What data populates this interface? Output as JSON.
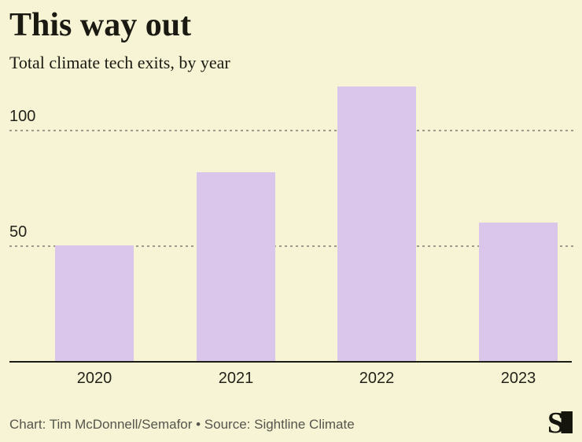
{
  "header": {
    "title": "This way out",
    "subtitle": "Total climate tech exits, by year"
  },
  "chart_data": {
    "type": "bar",
    "title": "This way out",
    "subtitle": "Total climate tech exits, by year",
    "categories": [
      "2020",
      "2021",
      "2022",
      "2023"
    ],
    "values": [
      50,
      82,
      119,
      60
    ],
    "xlabel": "",
    "ylabel": "",
    "yticks": [
      50,
      100
    ],
    "ylim": [
      0,
      122
    ],
    "legend": "none",
    "grid": "horizontal-dotted",
    "colors": {
      "bar": "#dac6ea",
      "background": "#f7f4d5",
      "grid_line": "#9c9c8b",
      "axis_line": "#1c1c14",
      "tick_text": "#23231b",
      "title_text": "#1a1a12",
      "credit_text": "#55554c",
      "logo": "#15150e"
    }
  },
  "footer": {
    "credit": "Chart: Tim McDonnell/Semafor • Source: Sightline Climate",
    "logo_letter": "S"
  }
}
